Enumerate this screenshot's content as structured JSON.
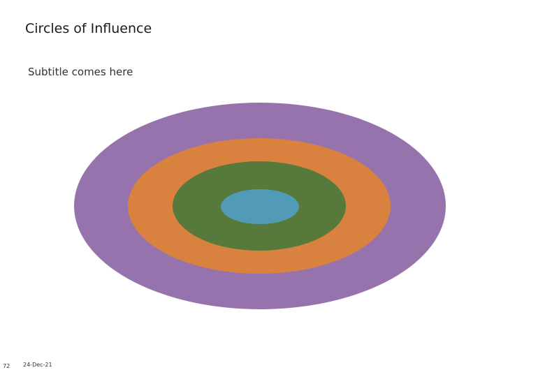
{
  "title": "Circles of Influence",
  "subtitle": "Subtitle comes here",
  "footer": {
    "page_number": "72",
    "date": "24-Dec-21"
  }
}
